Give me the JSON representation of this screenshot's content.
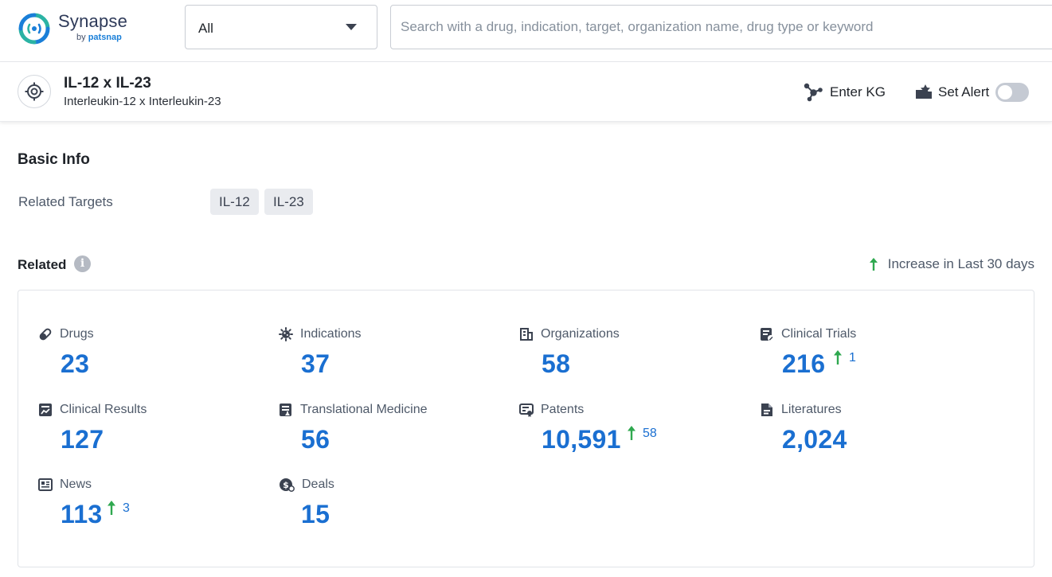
{
  "logo": {
    "name": "Synapse",
    "by": "by",
    "brand": "patsnap"
  },
  "search": {
    "scope": "All",
    "placeholder": "Search with a drug, indication, target, organization name, drug type or keyword"
  },
  "target": {
    "title": "IL-12 x IL-23",
    "subtitle": "Interleukin-12 x Interleukin-23",
    "enter_kg": "Enter KG",
    "set_alert": "Set Alert",
    "alert_on": false
  },
  "basic_info": {
    "title": "Basic Info",
    "related_targets_label": "Related Targets",
    "related_targets": [
      "IL-12",
      "IL-23"
    ]
  },
  "related": {
    "title": "Related",
    "legend": "Increase in Last 30 days",
    "stats": [
      {
        "label": "Drugs",
        "value": "23",
        "icon": "pill-icon"
      },
      {
        "label": "Indications",
        "value": "37",
        "icon": "virus-icon"
      },
      {
        "label": "Organizations",
        "value": "58",
        "icon": "building-icon"
      },
      {
        "label": "Clinical Trials",
        "value": "216",
        "icon": "clipboard-edit-icon",
        "increase": "1"
      },
      {
        "label": "Clinical Results",
        "value": "127",
        "icon": "chart-report-icon"
      },
      {
        "label": "Translational Medicine",
        "value": "56",
        "icon": "document-flask-icon"
      },
      {
        "label": "Patents",
        "value": "10,591",
        "icon": "certificate-icon",
        "increase": "58"
      },
      {
        "label": "Literatures",
        "value": "2,024",
        "icon": "document-icon"
      },
      {
        "label": "News",
        "value": "113",
        "icon": "newspaper-icon",
        "increase": "3"
      },
      {
        "label": "Deals",
        "value": "15",
        "icon": "handshake-dollar-icon"
      }
    ]
  },
  "colors": {
    "accent": "#1a6fd1",
    "increase": "#2fa84f",
    "icon": "#3b4250",
    "brand_teal": "#2bb3a4",
    "brand_blue": "#1a7fd8"
  }
}
